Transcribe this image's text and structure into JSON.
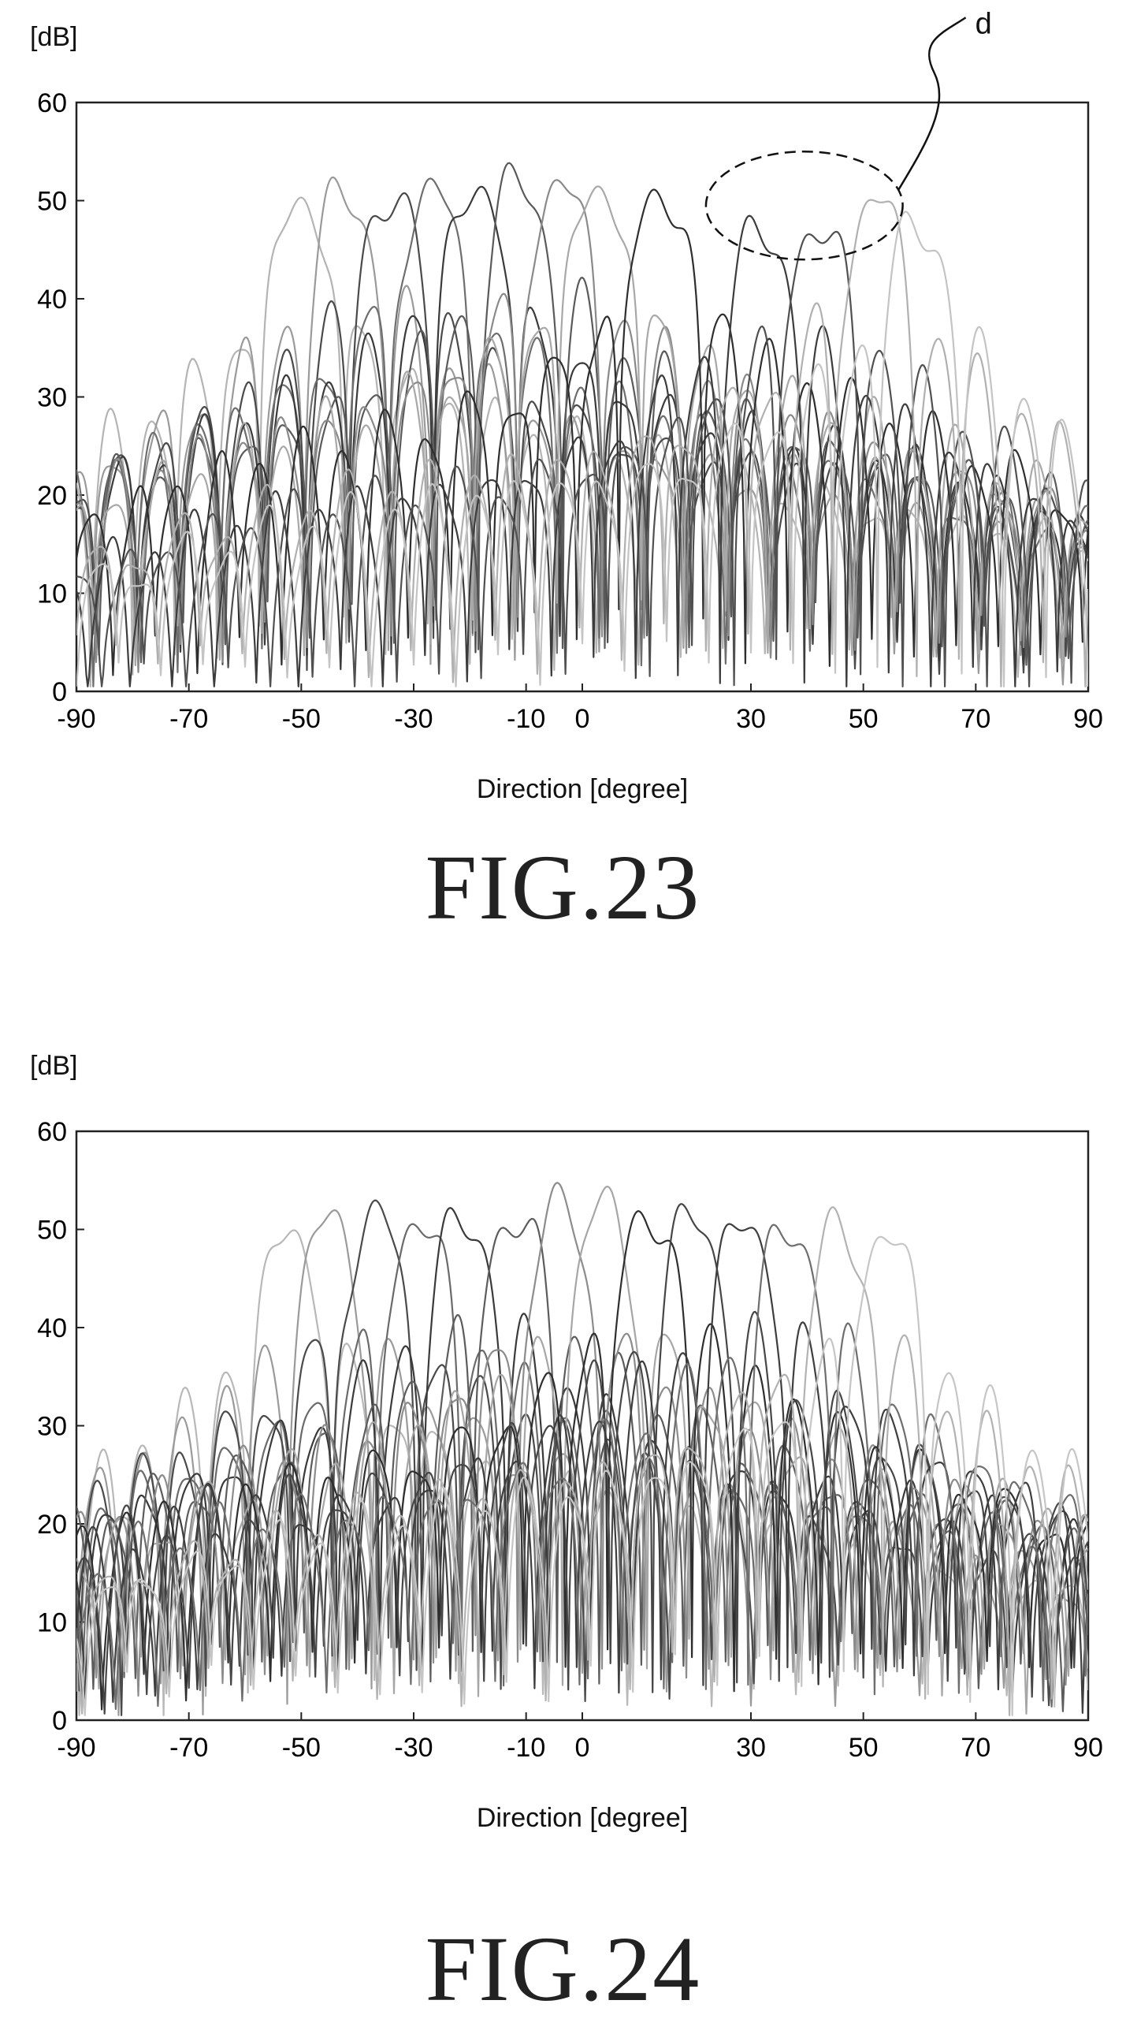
{
  "figures": [
    {
      "caption": "FIG.23",
      "annotation": "d",
      "ellipse_center": [
        39.5,
        49.5
      ],
      "ellipse_radii": [
        17.5,
        5.5
      ]
    },
    {
      "caption": "FIG.24"
    }
  ],
  "chart_data": [
    {
      "type": "line",
      "title": "",
      "xlabel": "Direction [degree]",
      "ylabel": "[dB]",
      "xlim": [
        -90,
        90
      ],
      "ylim": [
        0,
        60
      ],
      "xticks": [
        "-90",
        "-70",
        "-50",
        "-30",
        "-10",
        "0",
        "30",
        "50",
        "70",
        "90"
      ],
      "xtick_values": [
        -90,
        -70,
        -50,
        -30,
        -10,
        0,
        30,
        50,
        70,
        90
      ],
      "yticks": [
        "0",
        "10",
        "20",
        "30",
        "40",
        "50",
        "60"
      ],
      "grid": false,
      "legend": "none",
      "beam_peaks": [
        {
          "direction": -50,
          "gain": 50.5,
          "shade": "#b4b4b4"
        },
        {
          "direction": -42,
          "gain": 51.0,
          "shade": "#9a9a9a"
        },
        {
          "direction": -34,
          "gain": 51.0,
          "shade": "#4a4a4a"
        },
        {
          "direction": -27,
          "gain": 51.5,
          "shade": "#6e6e6e"
        },
        {
          "direction": -19,
          "gain": 51.8,
          "shade": "#3a3a3a"
        },
        {
          "direction": -11,
          "gain": 52.0,
          "shade": "#5a5a5a"
        },
        {
          "direction": -4,
          "gain": 52.0,
          "shade": "#8a8a8a"
        },
        {
          "direction": 3,
          "gain": 52.0,
          "shade": "#a8a8a8"
        },
        {
          "direction": 14,
          "gain": 51.5,
          "shade": "#2e2e2e"
        },
        {
          "direction": 32,
          "gain": 47.5,
          "shade": "#3c3c3c"
        },
        {
          "direction": 42,
          "gain": 48.0,
          "shade": "#505050"
        },
        {
          "direction": 52,
          "gain": 50.0,
          "shade": "#b0b0b0"
        },
        {
          "direction": 60,
          "gain": 48.5,
          "shade": "#c4c4c4"
        }
      ]
    },
    {
      "type": "line",
      "title": "",
      "xlabel": "Direction [degree]",
      "ylabel": "[dB]",
      "xlim": [
        -90,
        90
      ],
      "ylim": [
        0,
        60
      ],
      "xticks": [
        "-90",
        "-70",
        "-50",
        "-30",
        "-10",
        "0",
        "30",
        "50",
        "70",
        "90"
      ],
      "xtick_values": [
        -90,
        -70,
        -50,
        -30,
        -10,
        0,
        30,
        50,
        70,
        90
      ],
      "yticks": [
        "0",
        "10",
        "20",
        "30",
        "40",
        "50",
        "60"
      ],
      "grid": false,
      "legend": "none",
      "beam_peaks": [
        {
          "direction": -52,
          "gain": 49.8,
          "shade": "#b8b8b8"
        },
        {
          "direction": -45,
          "gain": 50.5,
          "shade": "#9a9a9a"
        },
        {
          "direction": -37,
          "gain": 51.2,
          "shade": "#4a4a4a"
        },
        {
          "direction": -29,
          "gain": 51.2,
          "shade": "#6a6a6a"
        },
        {
          "direction": -21,
          "gain": 51.5,
          "shade": "#3a3a3a"
        },
        {
          "direction": -12,
          "gain": 52.0,
          "shade": "#5c5c5c"
        },
        {
          "direction": -4,
          "gain": 52.0,
          "shade": "#8c8c8c"
        },
        {
          "direction": 4,
          "gain": 51.8,
          "shade": "#a6a6a6"
        },
        {
          "direction": 12,
          "gain": 52.0,
          "shade": "#2e2e2e"
        },
        {
          "direction": 20,
          "gain": 51.2,
          "shade": "#464646"
        },
        {
          "direction": 29,
          "gain": 51.0,
          "shade": "#3e3e3e"
        },
        {
          "direction": 37,
          "gain": 50.5,
          "shade": "#6e6e6e"
        },
        {
          "direction": 46,
          "gain": 50.0,
          "shade": "#b2b2b2"
        },
        {
          "direction": 54,
          "gain": 49.8,
          "shade": "#c6c6c6"
        }
      ]
    }
  ]
}
